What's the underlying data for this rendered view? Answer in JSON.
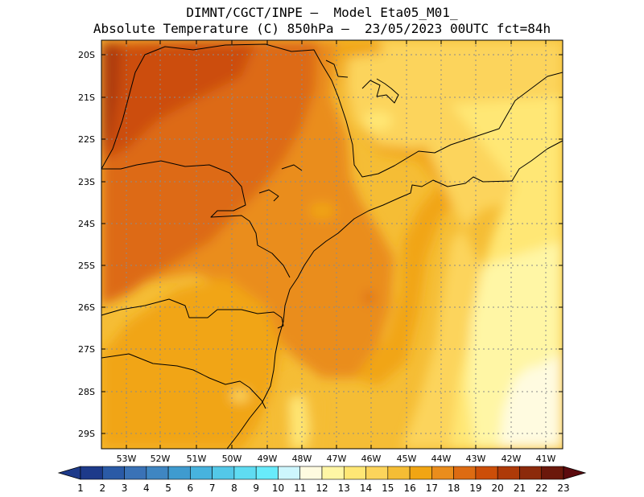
{
  "header": {
    "line1": "DIMNT/CGCT/INPE –  Model Eta05_M01_",
    "line2": "Absolute Temperature (C) 850hPa –  23/05/2023 00UTC fct=84h"
  },
  "axes": {
    "lat_labels": [
      "20S",
      "21S",
      "22S",
      "23S",
      "24S",
      "25S",
      "26S",
      "27S",
      "28S",
      "29S"
    ],
    "lon_labels": [
      "53W",
      "52W",
      "51W",
      "50W",
      "49W",
      "48W",
      "47W",
      "46W",
      "45W",
      "44W",
      "43W",
      "42W",
      "41W"
    ]
  },
  "colorbar": {
    "labels": [
      "1",
      "2",
      "3",
      "4",
      "5",
      "6",
      "7",
      "8",
      "9",
      "10",
      "11",
      "12",
      "13",
      "14",
      "15",
      "16",
      "17",
      "18",
      "19",
      "20",
      "21",
      "22",
      "23"
    ],
    "colors": [
      "#1d3a8a",
      "#2a5aa6",
      "#3a72b6",
      "#3f86c2",
      "#3f9bcf",
      "#47b3de",
      "#53c8e8",
      "#5fdcf2",
      "#68ebfb",
      "#cdf6fd",
      "#fffbe0",
      "#fff6a5",
      "#ffe775",
      "#fcd45b",
      "#f5bd35",
      "#f1a513",
      "#ea8d1c",
      "#dd6b12",
      "#cc4e08",
      "#ae3a08",
      "#8c2a0b",
      "#6b180b"
    ],
    "below_color": "#1d3a8a",
    "above_color": "#5c0a0e"
  }
}
